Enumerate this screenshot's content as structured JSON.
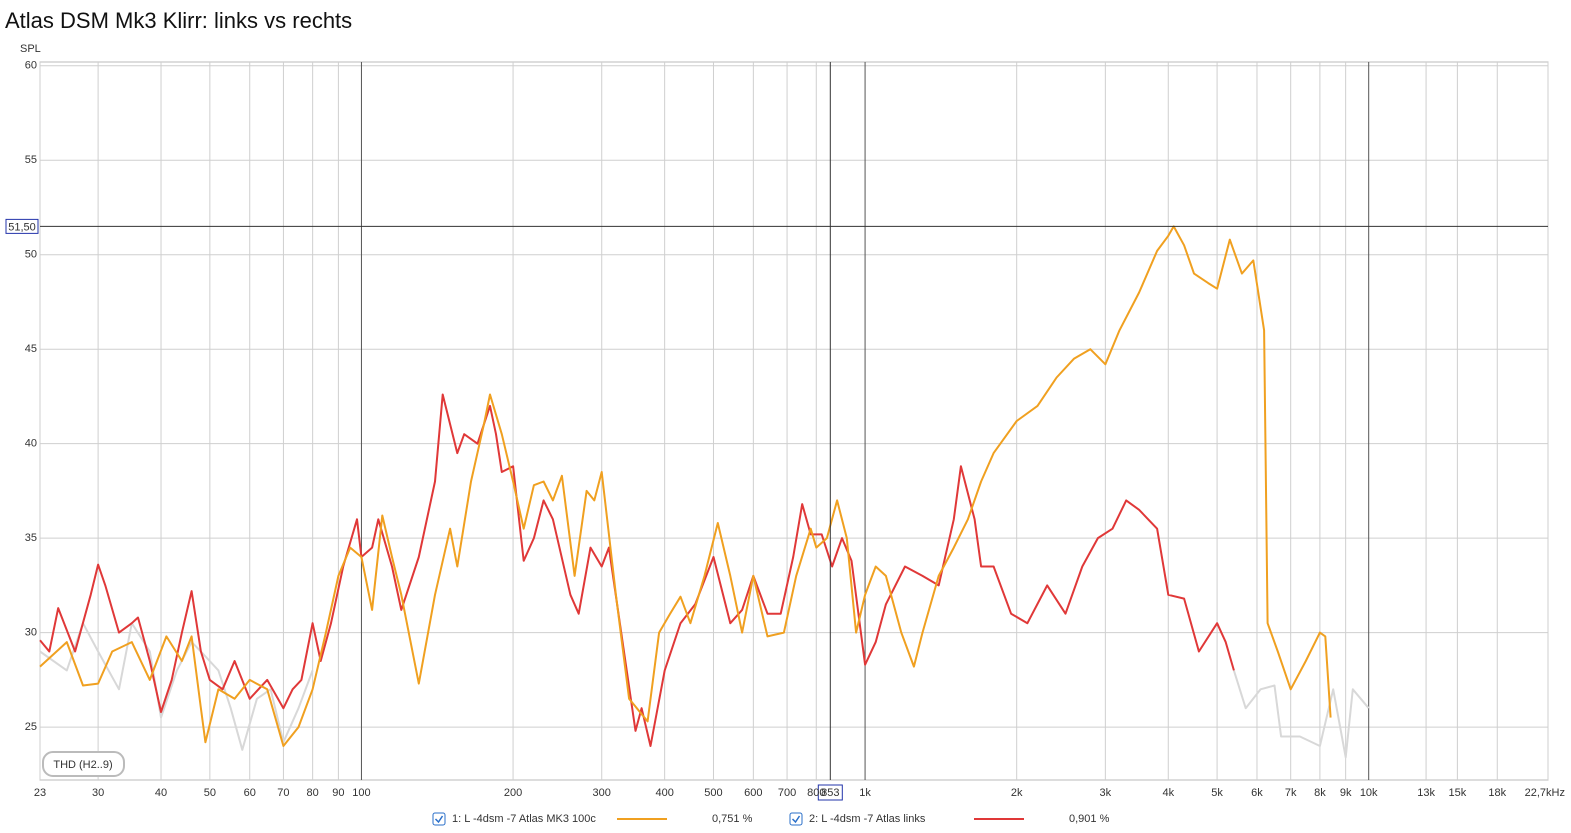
{
  "chart_data": {
    "type": "line",
    "title": "Atlas DSM Mk3 Klirr: links vs rechts",
    "y_label": "SPL",
    "button": "THD (H2..9)",
    "log_x": true,
    "grid": true,
    "xlim": [
      23,
      22700
    ],
    "ylim": [
      22.2,
      60.2
    ],
    "xticks": [
      23,
      30,
      40,
      50,
      60,
      70,
      80,
      90,
      100,
      200,
      300,
      400,
      500,
      600,
      700,
      800,
      {
        "value": 1000,
        "label": "1k"
      },
      {
        "value": 2000,
        "label": "2k"
      },
      {
        "value": 3000,
        "label": "3k"
      },
      {
        "value": 4000,
        "label": "4k"
      },
      {
        "value": 5000,
        "label": "5k"
      },
      {
        "value": 6000,
        "label": "6k"
      },
      {
        "value": 7000,
        "label": "7k"
      },
      {
        "value": 8000,
        "label": "8k"
      },
      {
        "value": 9000,
        "label": "9k"
      },
      {
        "value": 10000,
        "label": "10k"
      },
      {
        "value": 13000,
        "label": "13k"
      },
      {
        "value": 15000,
        "label": "15k"
      },
      {
        "value": 18000,
        "label": "18k"
      },
      {
        "value": 22700,
        "label": "22,7kHz"
      }
    ],
    "yticks": [
      25,
      30,
      35,
      40,
      45,
      50,
      55,
      60
    ],
    "cursor": {
      "x": {
        "value": 853,
        "label": "853"
      },
      "y": {
        "value": 51.5,
        "label": "51,50"
      }
    },
    "series": [
      {
        "name": "1: L -4dsm -7 Atlas MK3 100c",
        "color": "#f0a020",
        "cursor_value": {
          "value": 0.751,
          "label": "0,751 %"
        },
        "x": [
          23,
          26,
          28,
          30,
          32,
          35,
          38,
          41,
          44,
          46,
          48,
          49,
          52,
          56,
          60,
          65,
          70,
          75,
          80,
          85,
          90,
          95,
          100,
          105,
          110,
          115,
          120,
          130,
          140,
          150,
          155,
          165,
          175,
          180,
          190,
          200,
          210,
          220,
          230,
          240,
          250,
          265,
          280,
          290,
          300,
          320,
          340,
          370,
          390,
          410,
          430,
          450,
          480,
          510,
          540,
          570,
          600,
          640,
          690,
          730,
          780,
          800,
          840,
          880,
          920,
          960,
          1000,
          1050,
          1100,
          1180,
          1250,
          1300,
          1400,
          1500,
          1600,
          1700,
          1800,
          2000,
          2200,
          2400,
          2600,
          2800,
          3000,
          3200,
          3500,
          3800,
          4000,
          4100,
          4300,
          4500,
          4800,
          5000,
          5300,
          5600,
          5900,
          6200,
          6300,
          6600,
          7000,
          7500,
          8000,
          8200,
          8400
        ],
        "values": [
          28.2,
          29.5,
          27.2,
          27.3,
          29,
          29.5,
          27.5,
          29.8,
          28.5,
          29.8,
          26,
          24.2,
          27,
          26.5,
          27.5,
          27,
          24,
          25,
          27,
          30,
          33,
          34.5,
          34,
          31.2,
          36.2,
          34,
          32,
          27.3,
          32,
          35.5,
          33.5,
          38,
          41,
          42.6,
          40.5,
          38,
          35.5,
          37.8,
          38,
          37,
          38.3,
          33,
          37.5,
          37,
          38.5,
          32,
          26.5,
          25.3,
          30,
          31,
          31.9,
          30.5,
          33,
          35.8,
          33,
          30,
          33,
          29.8,
          30,
          33,
          35.5,
          34.5,
          35,
          37,
          35,
          30,
          32,
          33.5,
          33,
          30,
          28.2,
          30,
          33,
          34.5,
          36,
          38,
          39.5,
          41.2,
          42,
          43.5,
          44.5,
          45,
          44.2,
          46,
          48,
          50.2,
          51,
          51.5,
          50.5,
          49,
          48.5,
          48.2,
          50.8,
          49,
          49.7,
          46,
          30.5,
          29,
          27,
          28.5,
          30,
          29.8,
          25.5
        ]
      },
      {
        "name": "2: L -4dsm -7 Atlas links",
        "color": "#e03838",
        "cursor_value": {
          "value": 0.901,
          "label": "0,901 %"
        },
        "x": [
          23,
          24,
          25,
          27,
          29,
          30,
          31,
          33,
          35,
          36,
          38,
          40,
          42,
          44,
          46,
          48,
          50,
          53,
          56,
          60,
          65,
          70,
          73,
          76,
          80,
          83,
          87,
          92,
          98,
          100,
          105,
          108,
          115,
          120,
          130,
          140,
          145,
          155,
          160,
          170,
          180,
          185,
          190,
          200,
          210,
          220,
          230,
          240,
          260,
          270,
          285,
          300,
          310,
          330,
          350,
          360,
          375,
          400,
          430,
          460,
          500,
          540,
          570,
          600,
          640,
          680,
          720,
          750,
          780,
          820,
          860,
          900,
          940,
          1000,
          1050,
          1100,
          1200,
          1300,
          1400,
          1500,
          1550,
          1650,
          1700,
          1800,
          1950,
          2100,
          2300,
          2500,
          2700,
          2900,
          3100,
          3300,
          3500,
          3800,
          4000,
          4300,
          4600,
          5000,
          5200,
          5400
        ],
        "values": [
          29.6,
          29,
          31.3,
          29,
          32,
          33.6,
          32.5,
          30,
          30.5,
          30.8,
          28.5,
          25.8,
          27.5,
          30,
          32.2,
          29,
          27.5,
          27,
          28.5,
          26.5,
          27.5,
          26,
          27,
          27.5,
          30.5,
          28.5,
          30.5,
          33.5,
          36,
          34,
          34.5,
          36,
          33.5,
          31.2,
          34,
          38,
          42.6,
          39.5,
          40.5,
          40,
          42,
          40.5,
          38.5,
          38.8,
          33.8,
          35,
          37,
          36,
          32,
          31,
          34.5,
          33.5,
          34.5,
          29.5,
          24.8,
          26,
          24,
          28,
          30.5,
          31.5,
          34,
          30.5,
          31.2,
          33,
          31,
          31,
          34,
          36.8,
          35.2,
          35.2,
          33.5,
          35,
          33.8,
          28.3,
          29.5,
          31.5,
          33.5,
          33,
          32.5,
          36,
          38.8,
          36,
          33.5,
          33.5,
          31,
          30.5,
          32.5,
          31,
          33.5,
          35,
          35.5,
          37,
          36.5,
          35.5,
          32,
          31.8,
          29,
          30.5,
          29.5,
          28
        ]
      },
      {
        "color": "#d8d8d8",
        "x": [
          23,
          26,
          28,
          30,
          33,
          35,
          38,
          40,
          43,
          46,
          48,
          52,
          55,
          58,
          62,
          66,
          70,
          75,
          80,
          1000,
          5400,
          5700,
          6100,
          6500,
          6700,
          7300,
          8000,
          8500,
          9000,
          9300,
          10000
        ],
        "values": [
          29,
          28,
          30.5,
          29,
          27,
          30.5,
          29,
          25.5,
          28,
          29.5,
          29,
          28,
          26,
          23.8,
          26.5,
          27,
          24.2,
          26,
          28,
          null,
          28,
          26,
          27,
          27.2,
          24.5,
          24.5,
          24,
          27,
          23.4,
          27,
          26
        ]
      }
    ]
  }
}
